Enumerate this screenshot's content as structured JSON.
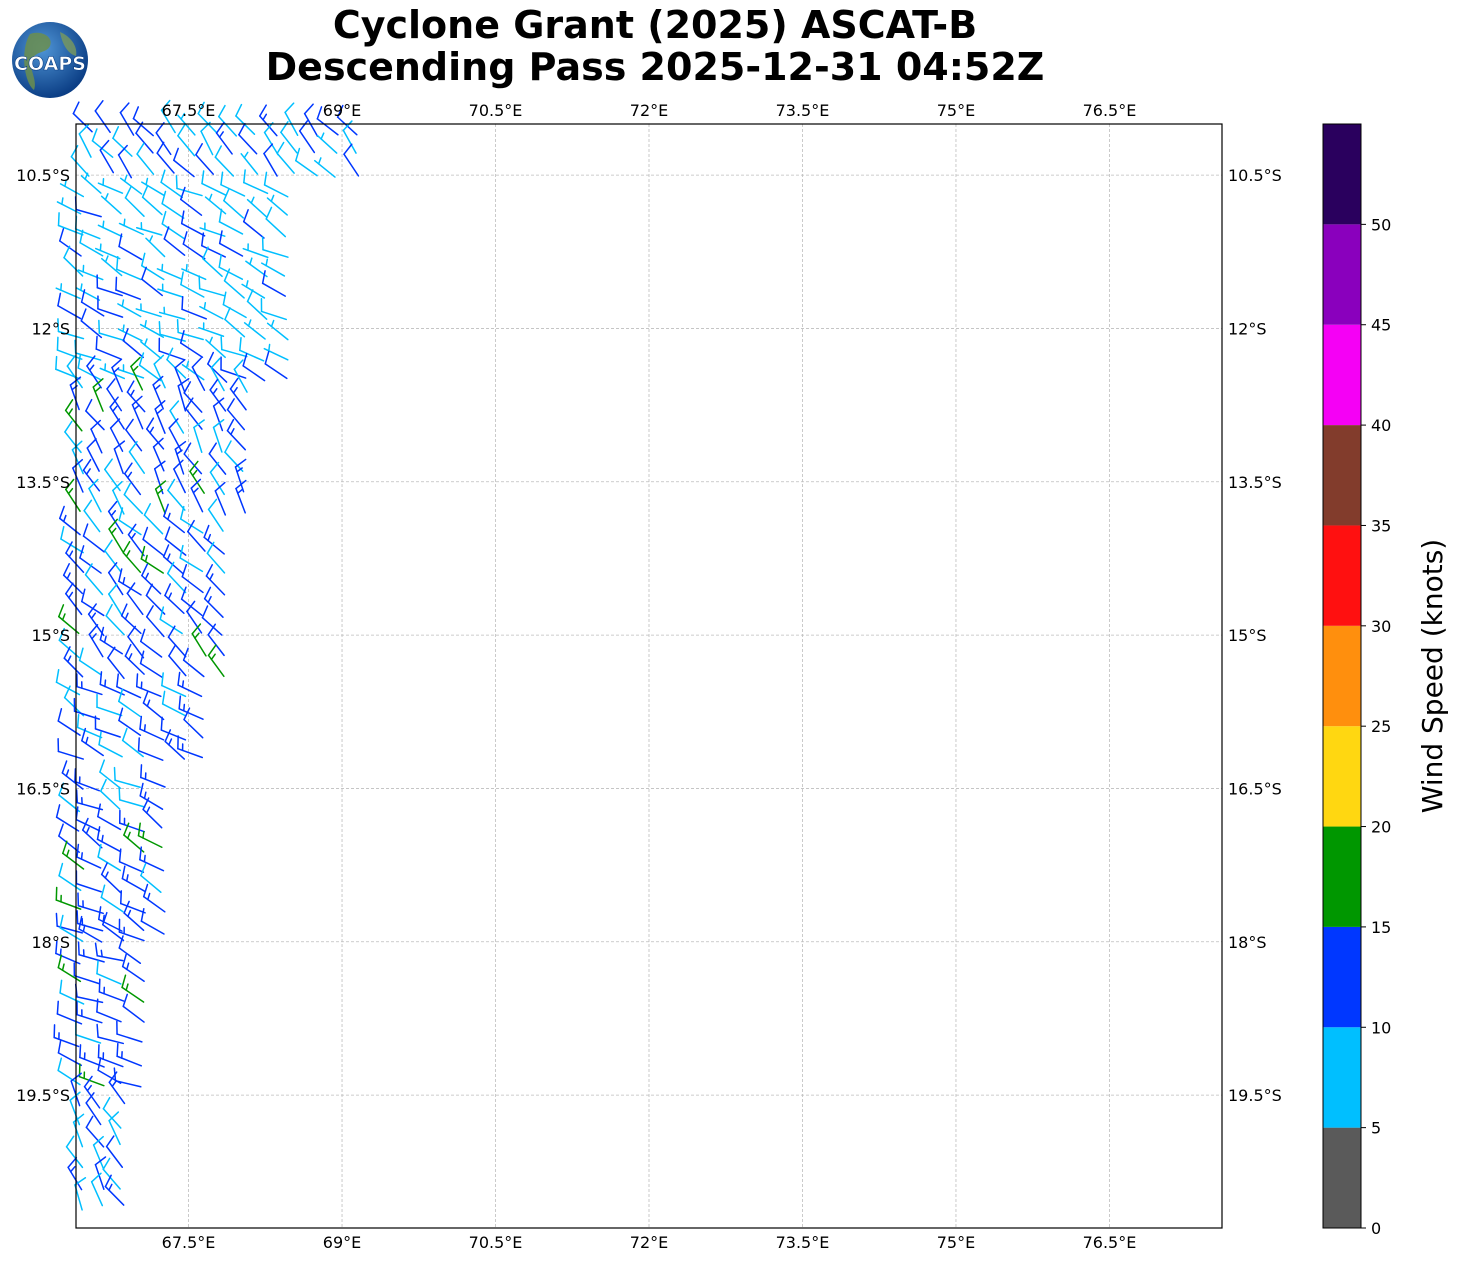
{
  "header": {
    "title_line1": "Cyclone Grant (2025) ASCAT-B",
    "title_line2": "Descending Pass 2025-12-31 04:52Z",
    "logo_text": "COAPS"
  },
  "map": {
    "lon_range": [
      66.4,
      77.6
    ],
    "lat_range": [
      -20.8,
      -10.0
    ],
    "lon_ticks": [
      {
        "value": 67.5,
        "label": "67.5°E"
      },
      {
        "value": 69.0,
        "label": "69°E"
      },
      {
        "value": 70.5,
        "label": "70.5°E"
      },
      {
        "value": 72.0,
        "label": "72°E"
      },
      {
        "value": 73.5,
        "label": "73.5°E"
      },
      {
        "value": 75.0,
        "label": "75°E"
      },
      {
        "value": 76.5,
        "label": "76.5°E"
      }
    ],
    "lat_ticks": [
      {
        "value": -10.5,
        "label": "10.5°S"
      },
      {
        "value": -12.0,
        "label": "12°S"
      },
      {
        "value": -13.5,
        "label": "13.5°S"
      },
      {
        "value": -15.0,
        "label": "15°S"
      },
      {
        "value": -16.5,
        "label": "16.5°S"
      },
      {
        "value": -18.0,
        "label": "18°S"
      },
      {
        "value": -19.5,
        "label": "19.5°S"
      }
    ],
    "grid": true,
    "wind_regions": [
      {
        "lat_from": -10.0,
        "lat_to": -10.6,
        "lon_min": 66.55,
        "lon_max": 69.2,
        "speed": 10,
        "dir": 320
      },
      {
        "lat_from": -10.6,
        "lat_to": -12.5,
        "lon_min": 66.45,
        "lon_max": 68.5,
        "speed": 8,
        "dir": 300
      },
      {
        "lat_from": -12.5,
        "lat_to": -13.9,
        "lon_min": 66.45,
        "lon_max": 68.1,
        "speed": 12,
        "dir": 330
      },
      {
        "lat_from": -13.9,
        "lat_to": -15.5,
        "lon_min": 66.45,
        "lon_max": 67.9,
        "speed": 12,
        "dir": 315
      },
      {
        "lat_from": -15.5,
        "lat_to": -16.4,
        "lon_min": 66.45,
        "lon_max": 67.7,
        "speed": 11,
        "dir": 300
      },
      {
        "lat_from": -16.4,
        "lat_to": -17.9,
        "lon_min": 66.45,
        "lon_max": 67.4,
        "speed": 12,
        "dir": 300
      },
      {
        "lat_from": -17.9,
        "lat_to": -19.5,
        "lon_min": 66.45,
        "lon_max": 67.1,
        "speed": 12,
        "dir": 295
      },
      {
        "lat_from": -19.5,
        "lat_to": -20.7,
        "lon_min": 66.45,
        "lon_max": 66.9,
        "speed": 11,
        "dir": 330
      }
    ]
  },
  "colorbar": {
    "label": "Wind Speed (knots)",
    "bins": [
      {
        "from": 0,
        "to": 5,
        "color": "#5a5a5a"
      },
      {
        "from": 5,
        "to": 10,
        "color": "#00bfff"
      },
      {
        "from": 10,
        "to": 15,
        "color": "#0037ff"
      },
      {
        "from": 15,
        "to": 20,
        "color": "#009700"
      },
      {
        "from": 20,
        "to": 25,
        "color": "#ffd711"
      },
      {
        "from": 25,
        "to": 30,
        "color": "#ff8f0d"
      },
      {
        "from": 30,
        "to": 35,
        "color": "#ff1010"
      },
      {
        "from": 35,
        "to": 40,
        "color": "#823c2c"
      },
      {
        "from": 40,
        "to": 45,
        "color": "#f500f5"
      },
      {
        "from": 45,
        "to": 50,
        "color": "#8a00bd"
      },
      {
        "from": 50,
        "to": 55,
        "color": "#2a005e"
      }
    ],
    "tick_labels": [
      "0",
      "5",
      "10",
      "15",
      "20",
      "25",
      "30",
      "35",
      "40",
      "45",
      "50"
    ]
  }
}
